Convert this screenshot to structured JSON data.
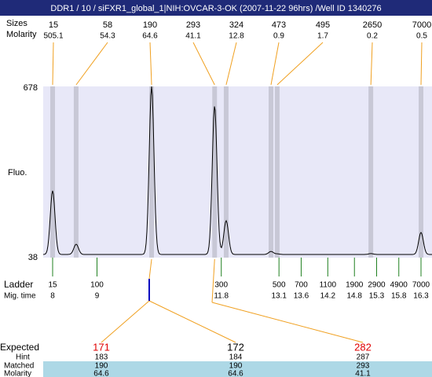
{
  "header": {
    "title": "DDR1 / 10 / siFXR1_global_1|NIH:OVCAR-3-OK (2007-11-22 96hrs) /Well ID 1340276"
  },
  "results": {
    "size_label": "Sizes",
    "molarity_label": "Molarity"
  },
  "y_axis": {
    "label": "Fluo.",
    "max": 678,
    "min": 38
  },
  "peaks": [
    {
      "size": 15,
      "molarity": 505.1,
      "mig_time": 8.0,
      "height": 288
    },
    {
      "size": 58,
      "molarity": 54.3,
      "mig_time": 8.53,
      "height": 88
    },
    {
      "size": 190,
      "molarity": 64.6,
      "mig_time": 10.23,
      "height": 678
    },
    {
      "size": 293,
      "molarity": 41.1,
      "mig_time": 11.65,
      "height": 605
    },
    {
      "size": 324,
      "molarity": 12.8,
      "mig_time": 11.91,
      "height": 176
    },
    {
      "size": 473,
      "molarity": 0.9,
      "mig_time": 12.92,
      "height": 61
    },
    {
      "size": 495,
      "molarity": 1.7,
      "mig_time": 13.06,
      "height": 52
    },
    {
      "size": 2650,
      "molarity": 0.2,
      "mig_time": 15.17,
      "height": 53
    },
    {
      "size": 7000,
      "molarity": 0.5,
      "mig_time": 16.3,
      "height": 132
    }
  ],
  "ladder": {
    "label": "Ladder",
    "mig_label": "Mig. time",
    "sizes": [
      15,
      100,
      300,
      500,
      700,
      1100,
      1900,
      2900,
      4900,
      7000
    ],
    "mig_times": [
      8,
      9,
      11.8,
      13.1,
      13.6,
      14.2,
      14.8,
      15.3,
      15.8,
      16.3
    ]
  },
  "expected": {
    "labels": {
      "expected": "Expected",
      "hint": "Hint",
      "matched": "Matched",
      "molarity": "Molarity"
    },
    "columns": [
      {
        "expected": 171,
        "color": "#e00000",
        "hint": 183,
        "matched": 190,
        "molarity": 64.6
      },
      {
        "expected": 172,
        "color": "#000000",
        "hint": 184,
        "matched": 190,
        "molarity": 64.6
      },
      {
        "expected": 282,
        "color": "#e00000",
        "hint": 287,
        "matched": 293,
        "molarity": 41.1
      }
    ]
  }
}
